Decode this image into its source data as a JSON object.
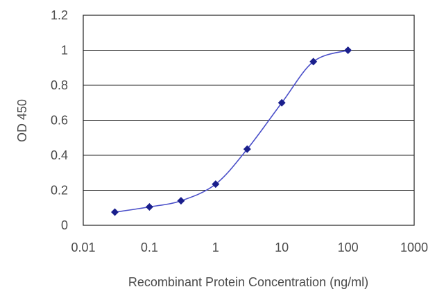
{
  "chart_data": {
    "type": "scatter",
    "xlabel": "Recombinant Protein Concentration (ng/ml)",
    "ylabel": "OD 450",
    "x_scale": "log",
    "xlim": [
      0.01,
      1000
    ],
    "ylim": [
      0,
      1.2
    ],
    "x_ticks": [
      {
        "value": 0.01,
        "label": "0.01"
      },
      {
        "value": 0.1,
        "label": "0.1"
      },
      {
        "value": 1,
        "label": "1"
      },
      {
        "value": 10,
        "label": "10"
      },
      {
        "value": 100,
        "label": "100"
      },
      {
        "value": 1000,
        "label": "1000"
      }
    ],
    "y_ticks": [
      {
        "value": 0,
        "label": "0"
      },
      {
        "value": 0.2,
        "label": "0.2"
      },
      {
        "value": 0.4,
        "label": "0.4"
      },
      {
        "value": 0.6,
        "label": "0.6"
      },
      {
        "value": 0.8,
        "label": "0.8"
      },
      {
        "value": 1,
        "label": "1"
      },
      {
        "value": 1.2,
        "label": "1.2"
      }
    ],
    "grid": "horizontal",
    "legend": "none",
    "series": [
      {
        "x": [
          0.03,
          0.1,
          0.3,
          1,
          3,
          10,
          30,
          100
        ],
        "y": [
          0.075,
          0.105,
          0.14,
          0.235,
          0.435,
          0.7,
          0.935,
          1.0
        ],
        "marker": "diamond",
        "fit_curve": true
      }
    ],
    "colors": {
      "marker": "#1a1f8c",
      "curve": "#4a4fc9",
      "grid": "#222222"
    }
  }
}
